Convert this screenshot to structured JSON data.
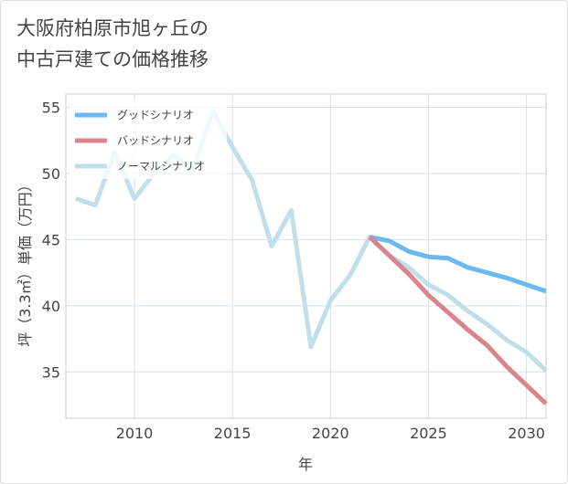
{
  "chart_data": {
    "type": "line",
    "title_lines": [
      "大阪府柏原市旭ヶ丘の",
      "中古戸建ての価格推移"
    ],
    "xlabel": "年",
    "ylabel": "坪（3.3㎡）単価（万円）",
    "xlim": [
      2006.5,
      2031
    ],
    "ylim": [
      31.5,
      56
    ],
    "x_ticks": [
      2010,
      2015,
      2020,
      2025,
      2030
    ],
    "y_ticks": [
      35,
      40,
      45,
      50,
      55
    ],
    "grid": true,
    "legend_position": "top-left",
    "series": [
      {
        "name": "グッドシナリオ",
        "color": "#6cb9ee",
        "x": [
          2022,
          2023,
          2024,
          2025,
          2026,
          2027,
          2028,
          2029,
          2030,
          2031
        ],
        "y": [
          45.2,
          44.9,
          44.1,
          43.7,
          43.6,
          42.9,
          42.5,
          42.1,
          41.6,
          41.1
        ]
      },
      {
        "name": "バッドシナリオ",
        "color": "#d9848e",
        "x": [
          2022,
          2023,
          2024,
          2025,
          2026,
          2027,
          2028,
          2029,
          2030,
          2031
        ],
        "y": [
          45.2,
          43.8,
          42.4,
          40.8,
          39.5,
          38.2,
          37.0,
          35.4,
          34.0,
          32.6
        ]
      },
      {
        "name": "ノーマルシナリオ",
        "color": "#c0dfea",
        "x": [
          2007,
          2008,
          2009,
          2010,
          2011,
          2012,
          2013,
          2014,
          2015,
          2016,
          2017,
          2018,
          2019,
          2020,
          2021,
          2022,
          2023,
          2024,
          2025,
          2026,
          2027,
          2028,
          2029,
          2030,
          2031
        ],
        "y": [
          48.1,
          47.6,
          51.6,
          48.1,
          50.0,
          51.4,
          50.3,
          54.7,
          52.0,
          49.5,
          44.5,
          47.2,
          36.9,
          40.4,
          42.3,
          45.2,
          43.8,
          42.9,
          41.6,
          40.8,
          39.6,
          38.6,
          37.4,
          36.5,
          35.1
        ]
      }
    ]
  }
}
